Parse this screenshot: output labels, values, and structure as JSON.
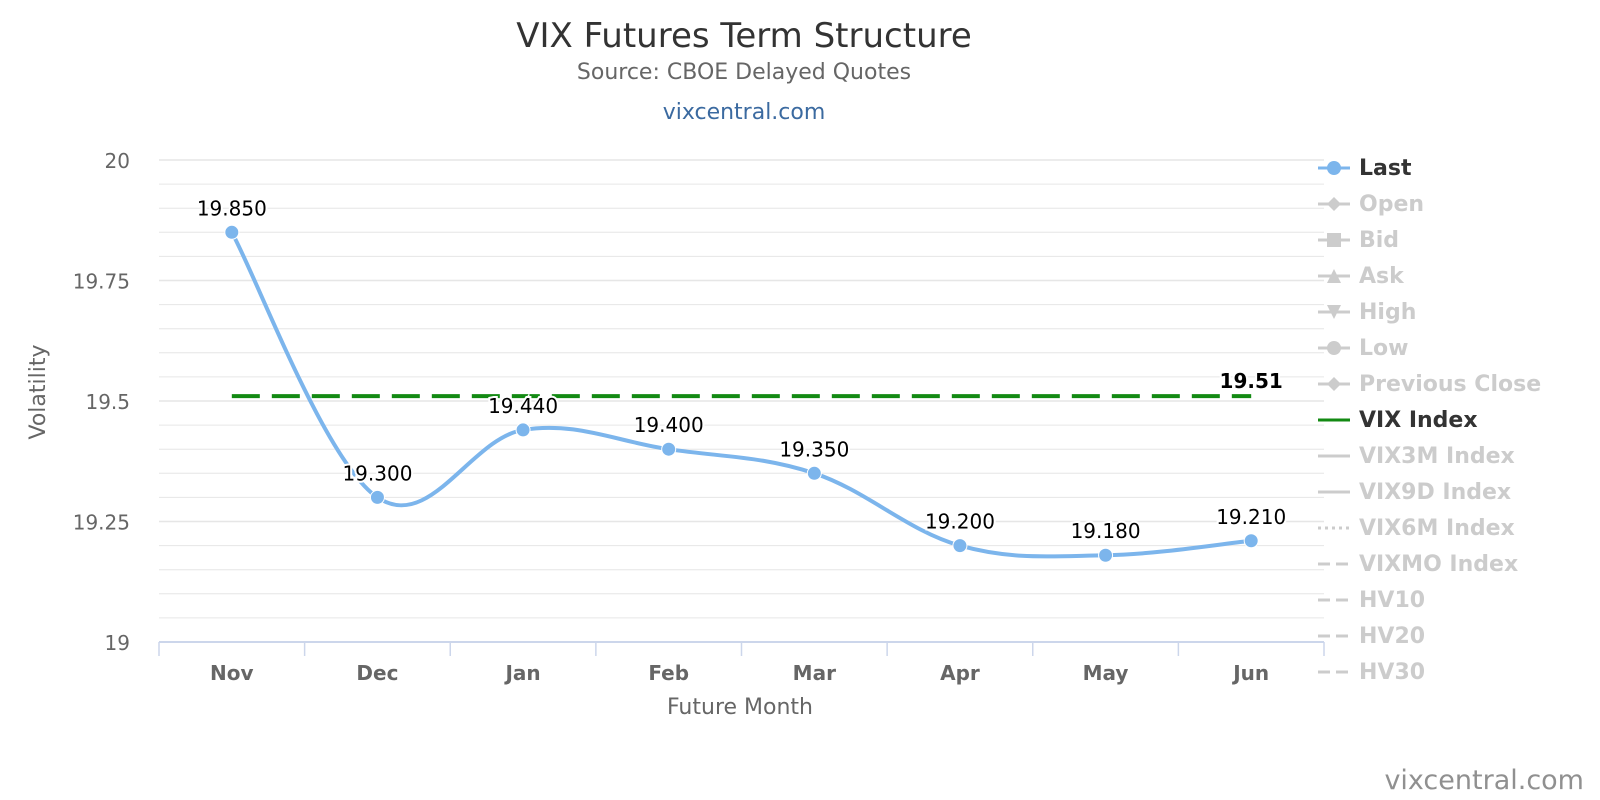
{
  "header": {
    "title": "VIX Futures Term Structure",
    "subtitle": "Source: CBOE Delayed Quotes",
    "link": "vixcentral.com"
  },
  "credit": "vixcentral.com",
  "colors": {
    "last": "#7cb5ec",
    "vix_index": "#138a13",
    "inactive": "#cccccc",
    "grid": "#e6e6e6",
    "axis": "#ccd6eb",
    "link": "#3b6aa0"
  },
  "chart_data": {
    "type": "line",
    "title": "VIX Futures Term Structure",
    "subtitle": "Source: CBOE Delayed Quotes",
    "xlabel": "Future Month",
    "ylabel": "Volatility",
    "categories": [
      "Nov",
      "Dec",
      "Jan",
      "Feb",
      "Mar",
      "Apr",
      "May",
      "Jun"
    ],
    "ylim": [
      19,
      20
    ],
    "yticks": [
      19,
      19.25,
      19.5,
      19.75,
      20
    ],
    "ytick_labels": [
      "19",
      "19.25",
      "19.5",
      "19.75",
      "20"
    ],
    "grid": true,
    "legend_position": "right",
    "series": [
      {
        "name": "Last",
        "values": [
          19.85,
          19.3,
          19.44,
          19.4,
          19.35,
          19.2,
          19.18,
          19.21
        ],
        "labels": [
          "19.850",
          "19.300",
          "19.440",
          "19.400",
          "19.350",
          "19.200",
          "19.180",
          "19.210"
        ],
        "color": "#7cb5ec",
        "style": "smooth line with circle markers"
      },
      {
        "name": "VIX Index",
        "value": 19.51,
        "label": "19.51",
        "color": "#138a13",
        "style": "dashed horizontal line"
      }
    ],
    "legend": [
      {
        "name": "Last",
        "symbol": "circle",
        "active": true
      },
      {
        "name": "Open",
        "symbol": "diamond",
        "active": false
      },
      {
        "name": "Bid",
        "symbol": "square",
        "active": false
      },
      {
        "name": "Ask",
        "symbol": "triangle",
        "active": false
      },
      {
        "name": "High",
        "symbol": "triangle-down",
        "active": false
      },
      {
        "name": "Low",
        "symbol": "circle",
        "active": false
      },
      {
        "name": "Previous Close",
        "symbol": "diamond",
        "active": false
      },
      {
        "name": "VIX Index",
        "symbol": "line",
        "active": true
      },
      {
        "name": "VIX3M Index",
        "symbol": "line",
        "active": false
      },
      {
        "name": "VIX9D Index",
        "symbol": "line",
        "active": false
      },
      {
        "name": "VIX6M Index",
        "symbol": "dotted",
        "active": false
      },
      {
        "name": "VIXMO Index",
        "symbol": "dashed",
        "active": false
      },
      {
        "name": "HV10",
        "symbol": "dashed",
        "active": false
      },
      {
        "name": "HV20",
        "symbol": "dashed",
        "active": false
      },
      {
        "name": "HV30",
        "symbol": "dashed",
        "active": false
      }
    ]
  }
}
